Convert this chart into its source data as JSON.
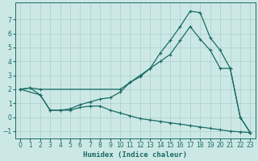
{
  "xlabel": "Humidex (Indice chaleur)",
  "xlim": [
    -0.5,
    23.5
  ],
  "ylim": [
    -1.5,
    8.2
  ],
  "yticks": [
    -1,
    0,
    1,
    2,
    3,
    4,
    5,
    6,
    7
  ],
  "xticks": [
    0,
    1,
    2,
    3,
    4,
    5,
    6,
    7,
    8,
    9,
    10,
    11,
    12,
    13,
    14,
    15,
    16,
    17,
    18,
    19,
    20,
    21,
    22,
    23
  ],
  "bg_color": "#cce8e5",
  "grid_color": "#aacfcc",
  "line_color": "#1a6b65",
  "line1_x": [
    0,
    1,
    2,
    3,
    4,
    5,
    6,
    7,
    8,
    9,
    10,
    11,
    12,
    13,
    14,
    15,
    16,
    17,
    18,
    19,
    20,
    21,
    22,
    23
  ],
  "line1_y": [
    2.0,
    2.1,
    1.6,
    0.5,
    0.5,
    0.6,
    0.9,
    1.1,
    1.3,
    1.4,
    1.8,
    2.5,
    2.9,
    3.5,
    4.6,
    5.5,
    6.5,
    7.6,
    7.5,
    5.7,
    4.8,
    3.5,
    0.0,
    -1.1
  ],
  "line2_x": [
    0,
    1,
    2,
    10,
    11,
    12,
    13,
    14,
    15,
    16,
    17,
    18,
    19,
    20,
    21,
    22,
    23
  ],
  "line2_y": [
    2.0,
    2.1,
    2.0,
    2.0,
    2.5,
    3.0,
    3.5,
    4.0,
    4.5,
    5.5,
    6.5,
    5.6,
    4.8,
    3.5,
    3.5,
    0.0,
    -1.1
  ],
  "line3_x": [
    0,
    2,
    3,
    4,
    5,
    6,
    7,
    8,
    9,
    10,
    11,
    12,
    13,
    14,
    15,
    16,
    17,
    18,
    19,
    20,
    21,
    22,
    23
  ],
  "line3_y": [
    2.0,
    1.6,
    0.5,
    0.5,
    0.5,
    0.7,
    0.8,
    0.8,
    0.5,
    0.3,
    0.1,
    -0.1,
    -0.2,
    -0.3,
    -0.4,
    -0.5,
    -0.6,
    -0.7,
    -0.8,
    -0.9,
    -1.0,
    -1.05,
    -1.1
  ]
}
